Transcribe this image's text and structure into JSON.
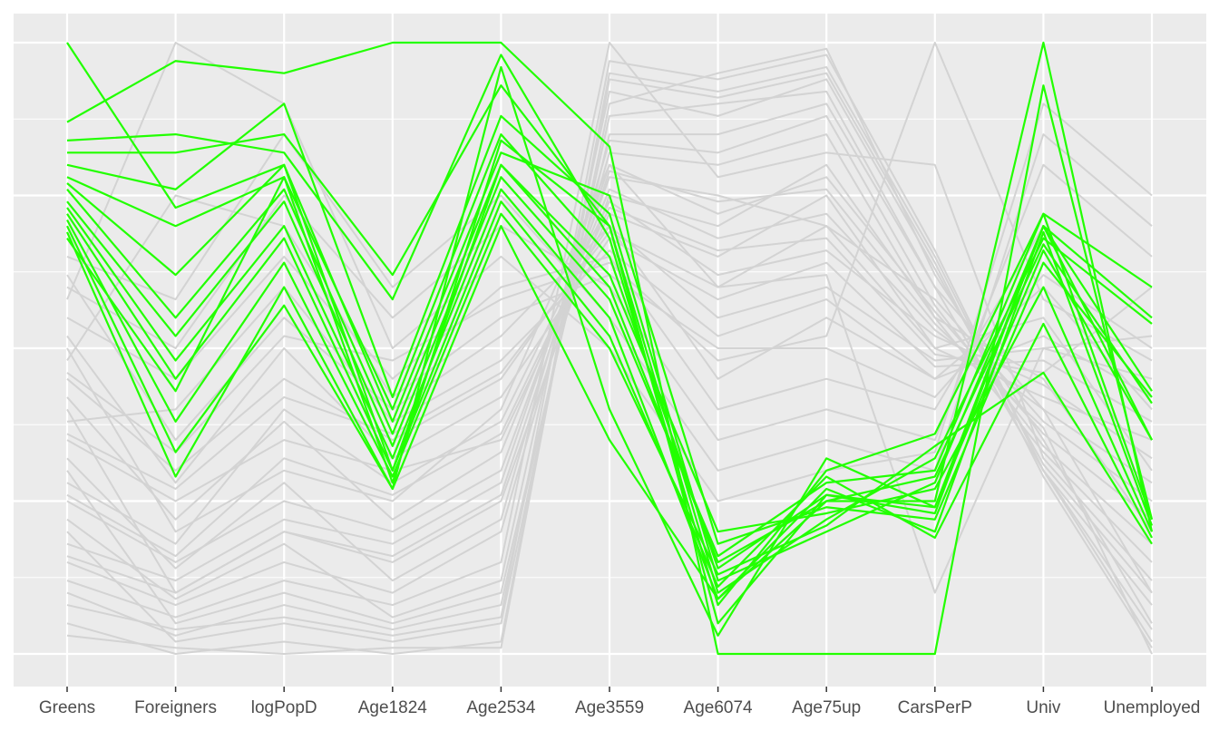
{
  "chart_data": {
    "type": "line",
    "subtype": "parallel-coordinates",
    "title": "",
    "xlabel": "",
    "ylabel": "",
    "ylim": [
      0,
      1
    ],
    "grid": true,
    "categories": [
      "Greens",
      "Foreigners",
      "logPopD",
      "Age1824",
      "Age2534",
      "Age3559",
      "Age6074",
      "Age75up",
      "CarsPerP",
      "Univ",
      "Unemployed"
    ],
    "colors": {
      "background": "#ebebeb",
      "grid": "#ffffff",
      "highlight": "#22ff00",
      "other": "#d3d3d3"
    },
    "other_series": [
      [
        0.62,
        0.35,
        0.55,
        0.4,
        0.52,
        0.7,
        0.45,
        0.55,
        0.45,
        0.6,
        0.4
      ],
      [
        0.5,
        0.2,
        0.3,
        0.25,
        0.4,
        0.8,
        0.6,
        0.7,
        0.5,
        0.55,
        0.3
      ],
      [
        0.4,
        0.1,
        0.2,
        0.15,
        0.25,
        0.75,
        0.7,
        0.8,
        0.55,
        0.45,
        0.2
      ],
      [
        0.3,
        0.05,
        0.1,
        0.05,
        0.1,
        0.85,
        0.85,
        0.9,
        0.6,
        0.4,
        0.1
      ],
      [
        0.2,
        0.02,
        0.05,
        0.02,
        0.05,
        0.9,
        0.95,
        0.99,
        0.62,
        0.35,
        0.05
      ],
      [
        0.55,
        0.45,
        0.65,
        0.45,
        0.6,
        0.65,
        0.4,
        0.45,
        0.4,
        0.7,
        0.55
      ],
      [
        0.45,
        0.3,
        0.45,
        0.35,
        0.45,
        0.7,
        0.55,
        0.6,
        0.48,
        0.5,
        0.45
      ],
      [
        0.35,
        0.25,
        0.35,
        0.3,
        0.35,
        0.72,
        0.65,
        0.75,
        0.5,
        0.42,
        0.35
      ],
      [
        0.25,
        0.15,
        0.25,
        0.2,
        0.3,
        0.78,
        0.75,
        0.7,
        0.58,
        0.38,
        0.25
      ],
      [
        0.15,
        0.08,
        0.15,
        0.1,
        0.2,
        0.82,
        0.8,
        0.85,
        0.55,
        0.33,
        0.15
      ],
      [
        0.1,
        0.03,
        0.08,
        0.04,
        0.08,
        0.88,
        0.9,
        0.92,
        0.6,
        0.3,
        0.08
      ],
      [
        0.05,
        0.0,
        0.02,
        0.0,
        0.02,
        0.95,
        0.92,
        0.96,
        0.65,
        0.3,
        0.02
      ],
      [
        0.6,
        0.5,
        0.75,
        0.55,
        0.7,
        0.6,
        0.35,
        0.4,
        0.35,
        0.8,
        0.65
      ],
      [
        0.65,
        0.58,
        0.85,
        0.6,
        0.75,
        0.55,
        0.3,
        0.35,
        0.3,
        0.85,
        0.7
      ],
      [
        0.58,
        1.0,
        0.9,
        0.5,
        0.65,
        0.5,
        0.25,
        0.3,
        0.33,
        0.9,
        0.75
      ],
      [
        0.48,
        0.75,
        0.7,
        0.42,
        0.55,
        0.62,
        0.5,
        0.5,
        0.42,
        0.62,
        0.5
      ],
      [
        0.38,
        0.4,
        0.6,
        0.38,
        0.48,
        0.66,
        0.52,
        0.58,
        0.45,
        0.52,
        0.42
      ],
      [
        0.28,
        0.18,
        0.4,
        0.28,
        0.38,
        0.74,
        0.62,
        0.66,
        0.52,
        0.44,
        0.32
      ],
      [
        0.18,
        0.12,
        0.22,
        0.18,
        0.28,
        0.8,
        0.72,
        0.78,
        0.56,
        0.36,
        0.22
      ],
      [
        0.12,
        0.06,
        0.12,
        0.08,
        0.15,
        1.0,
        0.78,
        0.82,
        0.8,
        0.32,
        0.12
      ],
      [
        0.52,
        0.28,
        0.5,
        0.32,
        0.42,
        0.68,
        0.58,
        0.64,
        0.47,
        0.48,
        0.38
      ],
      [
        0.42,
        0.22,
        0.38,
        0.22,
        0.33,
        0.76,
        0.68,
        0.72,
        0.53,
        0.4,
        0.28
      ],
      [
        0.32,
        0.14,
        0.28,
        0.12,
        0.22,
        0.84,
        0.82,
        0.88,
        0.57,
        0.34,
        0.18
      ],
      [
        0.22,
        0.09,
        0.18,
        0.06,
        0.12,
        0.92,
        0.88,
        0.94,
        0.63,
        0.31,
        0.1
      ],
      [
        0.08,
        0.04,
        0.06,
        0.03,
        0.06,
        0.97,
        0.94,
        0.98,
        0.66,
        0.3,
        0.04
      ],
      [
        0.46,
        0.33,
        0.52,
        0.48,
        0.58,
        0.64,
        0.48,
        0.52,
        1.0,
        0.58,
        0.48
      ],
      [
        0.36,
        0.27,
        0.42,
        0.36,
        0.46,
        0.69,
        0.6,
        0.62,
        0.1,
        0.5,
        0.52
      ],
      [
        0.26,
        0.16,
        0.32,
        0.26,
        0.36,
        0.73,
        0.66,
        0.68,
        0.49,
        0.46,
        0.6
      ],
      [
        0.16,
        0.1,
        0.2,
        0.16,
        0.26,
        0.79,
        0.74,
        0.76,
        0.54,
        0.37,
        0.0
      ],
      [
        0.03,
        0.01,
        0.0,
        0.01,
        0.01,
        0.94,
        0.91,
        0.95,
        0.64,
        0.29,
        0.01
      ]
    ],
    "highlight_series": [
      [
        1.0,
        0.73,
        0.8,
        0.3,
        0.8,
        0.6,
        0.15,
        0.25,
        0.25,
        1.0,
        0.2
      ],
      [
        0.87,
        0.97,
        0.95,
        1.0,
        1.0,
        0.83,
        0.0,
        0.0,
        0.0,
        0.93,
        0.22
      ],
      [
        0.84,
        0.85,
        0.82,
        0.58,
        0.98,
        0.68,
        0.08,
        0.3,
        0.36,
        0.72,
        0.6
      ],
      [
        0.82,
        0.82,
        0.85,
        0.62,
        0.93,
        0.7,
        0.1,
        0.22,
        0.32,
        0.68,
        0.54
      ],
      [
        0.8,
        0.76,
        0.9,
        0.42,
        0.88,
        0.72,
        0.12,
        0.2,
        0.28,
        0.7,
        0.43
      ],
      [
        0.78,
        0.7,
        0.78,
        0.4,
        0.85,
        0.65,
        0.14,
        0.26,
        0.24,
        0.66,
        0.35
      ],
      [
        0.77,
        0.62,
        0.8,
        0.38,
        0.82,
        0.75,
        0.18,
        0.24,
        0.22,
        0.64,
        0.42
      ],
      [
        0.76,
        0.55,
        0.76,
        0.36,
        0.8,
        0.62,
        0.2,
        0.23,
        0.27,
        0.6,
        0.2
      ],
      [
        0.74,
        0.52,
        0.74,
        0.34,
        0.78,
        0.58,
        0.16,
        0.28,
        0.3,
        0.72,
        0.22
      ],
      [
        0.73,
        0.48,
        0.7,
        0.32,
        0.76,
        0.55,
        0.09,
        0.27,
        0.2,
        0.69,
        0.21
      ],
      [
        0.72,
        0.45,
        0.68,
        0.3,
        0.74,
        0.52,
        0.11,
        0.29,
        0.19,
        0.54,
        0.19
      ],
      [
        0.71,
        0.38,
        0.64,
        0.29,
        0.72,
        0.5,
        0.13,
        0.21,
        0.34,
        0.46,
        0.18
      ],
      [
        0.7,
        0.33,
        0.57,
        0.27,
        0.7,
        0.35,
        0.09,
        0.25,
        0.29,
        0.67,
        0.41
      ],
      [
        0.69,
        0.29,
        0.6,
        0.27,
        0.96,
        0.4,
        0.03,
        0.32,
        0.24,
        0.7,
        0.55
      ],
      [
        0.68,
        0.43,
        0.78,
        0.28,
        0.84,
        0.7,
        0.05,
        0.26,
        0.23,
        0.7,
        0.35
      ]
    ]
  }
}
